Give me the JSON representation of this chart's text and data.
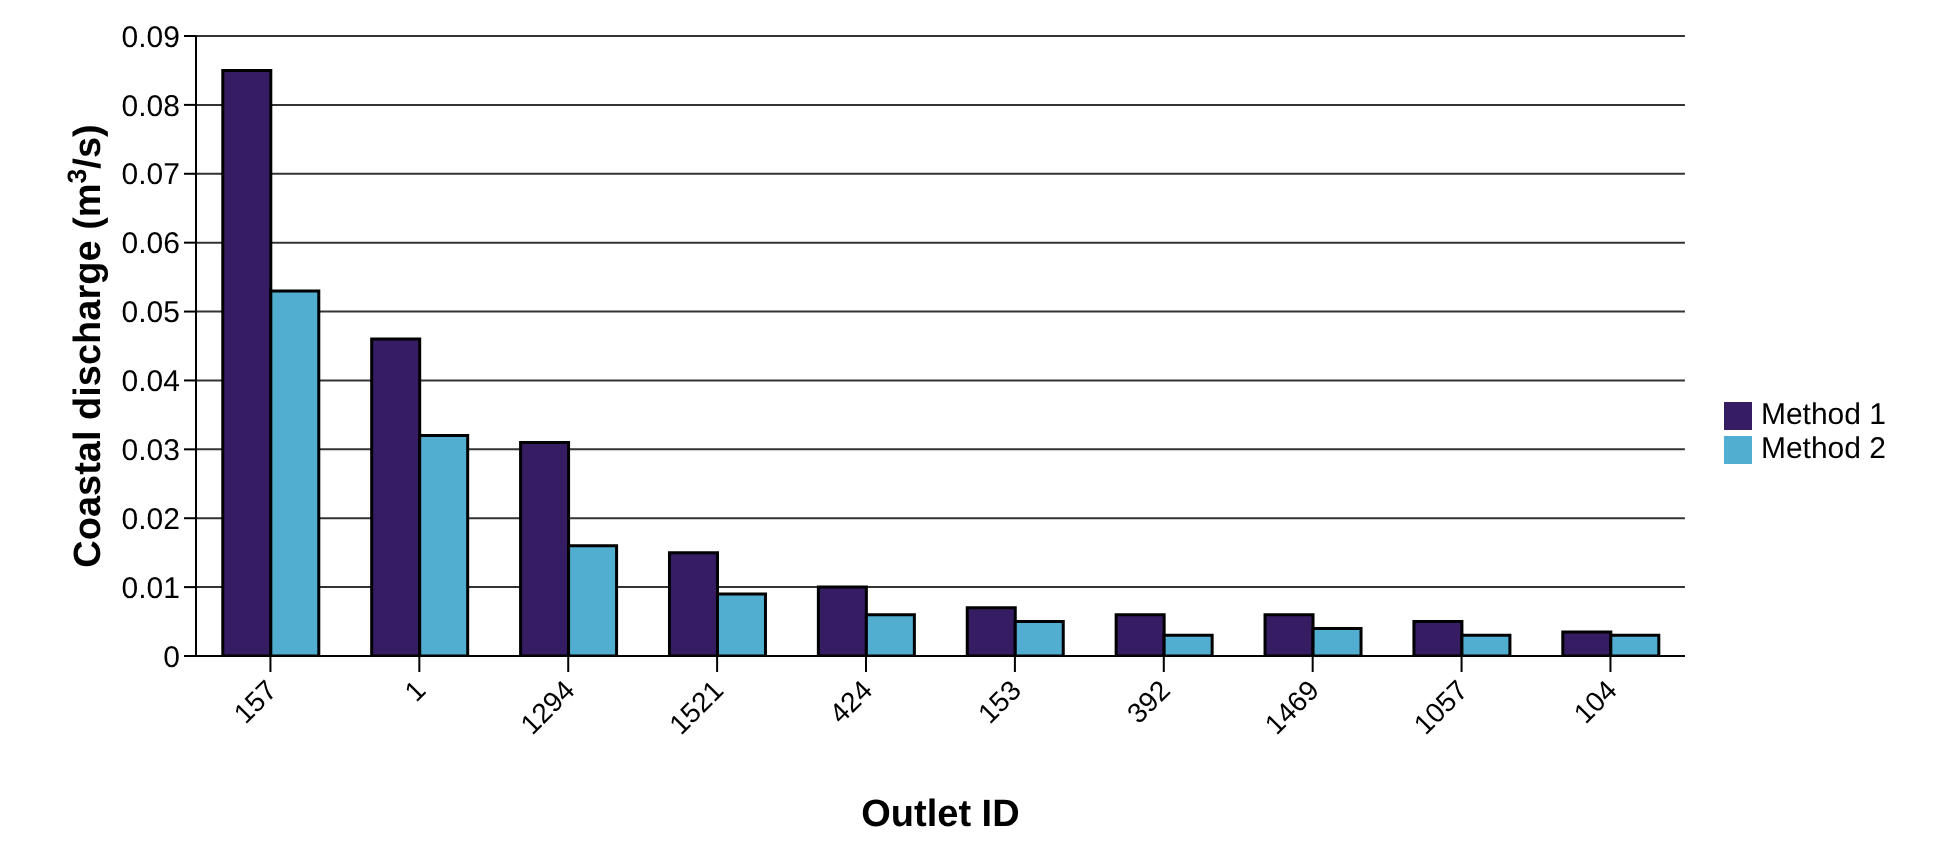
{
  "chart_data": {
    "type": "bar",
    "xlabel": "Outlet ID",
    "ylabel": "Coastal discharge (m$^{3}$/s)",
    "categories": [
      "157",
      "1",
      "1294",
      "1521",
      "424",
      "153",
      "392",
      "1469",
      "1057",
      "104"
    ],
    "series": [
      {
        "name": "Method 1",
        "color": "#361d63",
        "values": [
          0.085,
          0.046,
          0.031,
          0.015,
          0.01,
          0.007,
          0.006,
          0.006,
          0.005,
          0.0035
        ]
      },
      {
        "name": "Method 2",
        "color": "#52aed0",
        "values": [
          0.053,
          0.032,
          0.016,
          0.009,
          0.006,
          0.005,
          0.003,
          0.004,
          0.003,
          0.003
        ]
      }
    ],
    "ylim": [
      0,
      0.09
    ],
    "yticks": [
      0,
      0.01,
      0.02,
      0.03,
      0.04,
      0.05,
      0.06,
      0.07,
      0.08,
      0.09
    ],
    "grid": "y",
    "legend": "right"
  }
}
